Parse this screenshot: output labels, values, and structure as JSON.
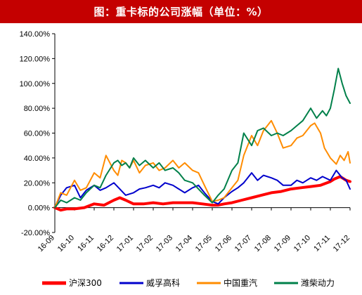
{
  "title": "图：重卡标的公司涨幅（单位：%）",
  "chart_data": {
    "type": "line",
    "title": "图：重卡标的公司涨幅（单位：%）",
    "x_categories": [
      "16-09",
      "16-10",
      "16-11",
      "16-12",
      "17-01",
      "17-02",
      "17-03",
      "17-04",
      "17-05",
      "17-06",
      "17-07",
      "17-08",
      "17-09",
      "17-10",
      "17-11",
      "17-12"
    ],
    "ylim": [
      -20,
      140
    ],
    "y_ticks": [
      -20,
      0,
      20,
      40,
      60,
      80,
      100,
      120,
      140
    ],
    "y_tick_labels": [
      "-20.00%",
      "0.00%",
      "20.00%",
      "40.00%",
      "60.00%",
      "80.00%",
      "100.00%",
      "120.00%",
      "140.00%"
    ],
    "grid": false,
    "legend_position": "bottom",
    "series": [
      {
        "name": "沪深300",
        "color": "#ff0000",
        "x": [
          0,
          0.3,
          0.6,
          1,
          1.5,
          2,
          2.5,
          3,
          3.3,
          3.6,
          4,
          4.5,
          5,
          5.5,
          6,
          6.5,
          7,
          7.5,
          8,
          8.3,
          8.6,
          9,
          9.5,
          10,
          10.5,
          11,
          11.5,
          12,
          12.5,
          13,
          13.5,
          14,
          14.2,
          14.5,
          14.8,
          15
        ],
        "values": [
          0,
          -2,
          -1,
          -1,
          0,
          3,
          2,
          6,
          8,
          6,
          3,
          3,
          4,
          3,
          4,
          4,
          4,
          3,
          2,
          2,
          3,
          4,
          6,
          8,
          10,
          12,
          13,
          15,
          16,
          17,
          18,
          21,
          23,
          25,
          22,
          21
        ]
      },
      {
        "name": "威孚高科",
        "color": "#0000cc",
        "x": [
          0,
          0.3,
          0.6,
          1,
          1.3,
          1.6,
          2,
          2.3,
          2.6,
          3,
          3.3,
          3.6,
          4,
          4.3,
          4.6,
          5,
          5.3,
          5.6,
          6,
          6.3,
          6.6,
          7,
          7.3,
          7.6,
          8,
          8.3,
          8.6,
          9,
          9.3,
          9.6,
          10,
          10.3,
          10.6,
          11,
          11.3,
          11.6,
          12,
          12.3,
          12.6,
          13,
          13.3,
          13.6,
          14,
          14.3,
          14.6,
          14.8,
          15
        ],
        "values": [
          0,
          10,
          16,
          18,
          8,
          14,
          18,
          14,
          16,
          20,
          15,
          10,
          12,
          15,
          16,
          18,
          16,
          20,
          18,
          15,
          12,
          16,
          18,
          12,
          5,
          3,
          8,
          13,
          16,
          20,
          28,
          22,
          26,
          24,
          22,
          18,
          18,
          22,
          20,
          24,
          22,
          25,
          22,
          30,
          24,
          22,
          15
        ]
      },
      {
        "name": "中国重汽",
        "color": "#ff8c00",
        "x": [
          0,
          0.3,
          0.6,
          1,
          1.3,
          1.6,
          2,
          2.3,
          2.6,
          3,
          3.2,
          3.4,
          3.6,
          3.8,
          4,
          4.3,
          4.6,
          5,
          5.3,
          5.6,
          6,
          6.3,
          6.6,
          7,
          7.3,
          7.6,
          8,
          8.3,
          8.6,
          9,
          9.3,
          9.6,
          10,
          10.3,
          10.6,
          11,
          11.3,
          11.6,
          12,
          12.3,
          12.6,
          13,
          13.2,
          13.5,
          13.7,
          14,
          14.3,
          14.5,
          14.7,
          14.9,
          15
        ],
        "values": [
          0,
          12,
          10,
          22,
          14,
          16,
          28,
          24,
          42,
          30,
          26,
          38,
          36,
          32,
          38,
          28,
          34,
          36,
          30,
          32,
          38,
          32,
          36,
          30,
          28,
          18,
          5,
          6,
          8,
          16,
          22,
          42,
          58,
          50,
          62,
          70,
          60,
          48,
          50,
          56,
          58,
          66,
          68,
          60,
          48,
          40,
          35,
          42,
          38,
          45,
          36
        ]
      },
      {
        "name": "潍柴动力",
        "color": "#00804a",
        "x": [
          0,
          0.3,
          0.6,
          1,
          1.3,
          1.6,
          2,
          2.3,
          2.6,
          3,
          3.2,
          3.4,
          3.6,
          3.8,
          4,
          4.3,
          4.6,
          5,
          5.3,
          5.6,
          6,
          6.3,
          6.6,
          7,
          7.3,
          7.6,
          8,
          8.3,
          8.6,
          9,
          9.3,
          9.6,
          10,
          10.3,
          10.6,
          11,
          11.3,
          11.6,
          12,
          12.3,
          12.6,
          13,
          13.3,
          13.6,
          13.8,
          14,
          14.2,
          14.4,
          14.6,
          14.8,
          15
        ],
        "values": [
          0,
          6,
          4,
          8,
          6,
          12,
          18,
          16,
          26,
          36,
          38,
          34,
          36,
          32,
          40,
          34,
          38,
          32,
          36,
          30,
          32,
          28,
          22,
          20,
          15,
          10,
          4,
          10,
          15,
          30,
          36,
          60,
          50,
          62,
          64,
          58,
          60,
          58,
          62,
          66,
          70,
          80,
          72,
          78,
          74,
          80,
          95,
          112,
          100,
          90,
          84
        ]
      }
    ]
  }
}
